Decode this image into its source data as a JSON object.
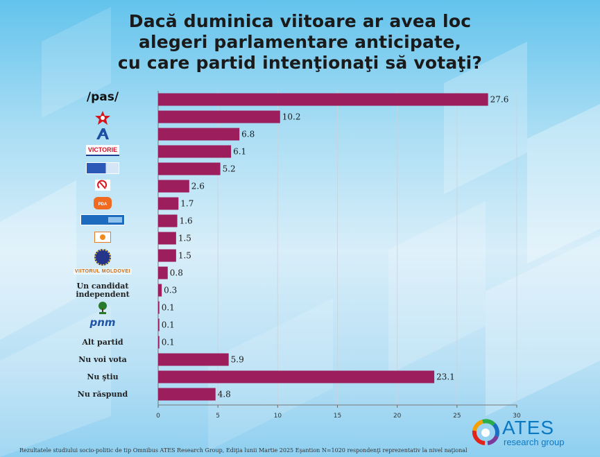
{
  "title_lines": [
    "Dacă duminica viitoare ar avea loc",
    "alegeri parlamentare anticipate,",
    "cu care partid intenţionaţi să votaţi?"
  ],
  "chart_data": {
    "type": "bar",
    "orientation": "horizontal",
    "title": "Dacă duminica viitoare ar avea loc alegeri parlamentare anticipate, cu care partid intenţionaţi să votaţi?",
    "categories": [
      "/pas/",
      "PSRM",
      "Alternativa",
      "VICTORIE",
      "Partidul Nostru",
      "PCRM",
      "Partidul Democrația Acasă",
      "Coaliția Unității și Bunăstării",
      "Partidul Schimbării",
      "Mișcarea Respect Moldova",
      "VIITORUL MOLDOVEI",
      "Un candidat independent",
      "PLDM",
      "pnm",
      "Alt partid",
      "Nu voi vota",
      "Nu ştiu",
      "Nu răspund"
    ],
    "category_display": [
      {
        "kind": "text-logo",
        "text": "/pas/"
      },
      {
        "kind": "icon",
        "icon": "red-star-logo-icon"
      },
      {
        "kind": "icon",
        "icon": "alternativa-logo-icon"
      },
      {
        "kind": "text-logo",
        "text": "VICTORIE"
      },
      {
        "kind": "icon",
        "icon": "blue-flag-logo-icon"
      },
      {
        "kind": "icon",
        "icon": "hammer-sickle-logo-icon"
      },
      {
        "kind": "icon",
        "icon": "orange-heart-logo-icon"
      },
      {
        "kind": "icon",
        "icon": "blue-banner-logo-icon"
      },
      {
        "kind": "icon",
        "icon": "sun-square-logo-icon"
      },
      {
        "kind": "icon",
        "icon": "eu-stars-logo-icon"
      },
      {
        "kind": "text-logo",
        "text": "VIITORUL MOLDOVEI"
      },
      {
        "kind": "text",
        "text": "Un candidat independent"
      },
      {
        "kind": "icon",
        "icon": "tree-logo-icon"
      },
      {
        "kind": "text-logo",
        "text": "pnm"
      },
      {
        "kind": "text",
        "text": "Alt partid"
      },
      {
        "kind": "text",
        "text": "Nu voi vota"
      },
      {
        "kind": "text",
        "text": "Nu ştiu"
      },
      {
        "kind": "text",
        "text": "Nu răspund"
      }
    ],
    "values": [
      27.6,
      10.2,
      6.8,
      6.1,
      5.2,
      2.6,
      1.7,
      1.6,
      1.5,
      1.5,
      0.8,
      0.3,
      0.1,
      0.1,
      0.1,
      5.9,
      23.1,
      4.8
    ],
    "value_labels": [
      "27.6",
      "10.2",
      "6.8",
      "6.1",
      "5.2",
      "2.6",
      "1.7",
      "1.6",
      "1.5",
      "1.5",
      "0.8",
      "0.3",
      "0.1",
      "0.1",
      "0.1",
      "5.9",
      "23.1",
      "4.8"
    ],
    "xlim": [
      0,
      30
    ],
    "xticks": [
      0,
      5,
      10,
      15,
      20,
      25,
      30
    ],
    "xlabel": "",
    "ylabel": "",
    "grid": true,
    "bar_color": "#9c1e5c",
    "legend": "none"
  },
  "footer_text": "Rezultatele studiului socio-politic de tip Omnibus ATES Research Group, Ediţia lunii Martie 2025 Eşantion N=1020 respondenţi reprezentativ la nivel naţional",
  "brand": {
    "name": "ATES",
    "subtitle": "research group",
    "color": "#0b78c2"
  }
}
